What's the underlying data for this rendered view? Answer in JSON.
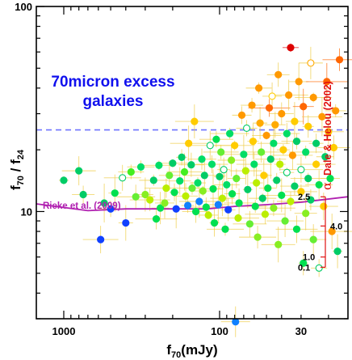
{
  "chart_data": {
    "type": "scatter",
    "x_axis": {
      "scale": "log",
      "reversed": true,
      "range": [
        1500,
        15
      ],
      "ticks": [
        {
          "value": 1000,
          "label": "1000"
        },
        {
          "value": 100,
          "label": "100"
        },
        {
          "value": 30,
          "label": "30"
        }
      ]
    },
    "y_axis": {
      "scale": "log",
      "range": [
        3,
        100
      ],
      "ticks": [
        {
          "value": 10,
          "label": "10"
        },
        {
          "value": 100,
          "label": "100"
        }
      ]
    },
    "threshold": {
      "y": 25,
      "color": "#6f74ff",
      "style": "dashed"
    },
    "rieke_curve": {
      "label": "Rieke et al. (2009)",
      "color": "#b020b0",
      "x": [
        1500,
        700,
        400,
        200,
        120,
        80,
        50,
        30,
        15
      ],
      "y": [
        10.9,
        10.1,
        10.3,
        10.3,
        10.3,
        10.6,
        10.8,
        11.1,
        11.8
      ]
    },
    "dale_helou": {
      "label_prefix": "α",
      "label_text": "Dale & Helou (2002)",
      "color": "#e01010",
      "alpha_marks": [
        {
          "label": "2.5",
          "y": 11.8
        },
        {
          "label": "4.0",
          "y": 8.5
        },
        {
          "label": "1.0",
          "y": 6.0
        },
        {
          "label": "0.1",
          "y": 5.35
        }
      ]
    },
    "points": [
      {
        "x": 1000,
        "y": 14.2,
        "c": "#00cc66",
        "f": true
      },
      {
        "x": 800,
        "y": 15.8,
        "c": "#00cc66",
        "f": true
      },
      {
        "x": 750,
        "y": 12.1,
        "c": "#00cc66",
        "f": true
      },
      {
        "x": 550,
        "y": 11.0,
        "c": "#00cc66",
        "f": true
      },
      {
        "x": 580,
        "y": 7.3,
        "c": "#1040ff",
        "f": true
      },
      {
        "x": 500,
        "y": 10.3,
        "c": "#1040ff",
        "f": true
      },
      {
        "x": 470,
        "y": 12.3,
        "c": "#00e050",
        "f": true
      },
      {
        "x": 420,
        "y": 14.6,
        "c": "#00cc66",
        "f": false
      },
      {
        "x": 370,
        "y": 15.6,
        "c": "#44ee22",
        "f": true
      },
      {
        "x": 400,
        "y": 8.8,
        "c": "#1040ff",
        "f": true
      },
      {
        "x": 345,
        "y": 11.8,
        "c": "#66ee33",
        "f": true
      },
      {
        "x": 320,
        "y": 16.5,
        "c": "#00dd66",
        "f": true
      },
      {
        "x": 300,
        "y": 12.1,
        "c": "#88ee22",
        "f": true
      },
      {
        "x": 280,
        "y": 11.4,
        "c": "#bbee00",
        "f": true
      },
      {
        "x": 265,
        "y": 14.2,
        "c": "#00cc66",
        "f": true
      },
      {
        "x": 240,
        "y": 10.4,
        "c": "#00e050",
        "f": true
      },
      {
        "x": 255,
        "y": 9.2,
        "c": "#00e050",
        "f": true
      },
      {
        "x": 245,
        "y": 16.8,
        "c": "#00dd66",
        "f": true
      },
      {
        "x": 225,
        "y": 11.0,
        "c": "#88ee22",
        "f": true
      },
      {
        "x": 220,
        "y": 13.0,
        "c": "#bbee00",
        "f": true
      },
      {
        "x": 200,
        "y": 17.2,
        "c": "#00cc66",
        "f": true
      },
      {
        "x": 210,
        "y": 15.0,
        "c": "#66ee33",
        "f": true
      },
      {
        "x": 195,
        "y": 12.4,
        "c": "#00e050",
        "f": true
      },
      {
        "x": 190,
        "y": 10.3,
        "c": "#1040ff",
        "f": true
      },
      {
        "x": 180,
        "y": 14.1,
        "c": "#00dd66",
        "f": true
      },
      {
        "x": 175,
        "y": 18.4,
        "c": "#00cc66",
        "f": true
      },
      {
        "x": 168,
        "y": 15.6,
        "c": "#44ee22",
        "f": true
      },
      {
        "x": 165,
        "y": 11.9,
        "c": "#bbee00",
        "f": true
      },
      {
        "x": 160,
        "y": 10.7,
        "c": "#1080ff",
        "f": true
      },
      {
        "x": 158,
        "y": 21.5,
        "c": "#ffcc00",
        "f": true
      },
      {
        "x": 152,
        "y": 16.9,
        "c": "#00cc66",
        "f": true
      },
      {
        "x": 150,
        "y": 13.0,
        "c": "#66ee33",
        "f": true
      },
      {
        "x": 145,
        "y": 27.5,
        "c": "#ffcc00",
        "f": true
      },
      {
        "x": 142,
        "y": 10.0,
        "c": "#00e050",
        "f": true
      },
      {
        "x": 138,
        "y": 13.8,
        "c": "#00dd66",
        "f": true
      },
      {
        "x": 135,
        "y": 11.2,
        "c": "#1080ff",
        "f": true
      },
      {
        "x": 130,
        "y": 18.0,
        "c": "#00dd66",
        "f": true
      },
      {
        "x": 128,
        "y": 12.6,
        "c": "#88ee22",
        "f": true
      },
      {
        "x": 125,
        "y": 15.0,
        "c": "#00cc66",
        "f": true
      },
      {
        "x": 122,
        "y": 10.5,
        "c": "#00e050",
        "f": true
      },
      {
        "x": 118,
        "y": 9.6,
        "c": "#bbee00",
        "f": true
      },
      {
        "x": 115,
        "y": 21.0,
        "c": "#00cc66",
        "f": false
      },
      {
        "x": 112,
        "y": 17.0,
        "c": "#00dd66",
        "f": true
      },
      {
        "x": 110,
        "y": 12.9,
        "c": "#00e050",
        "f": true
      },
      {
        "x": 108,
        "y": 8.8,
        "c": "#00e050",
        "f": true
      },
      {
        "x": 105,
        "y": 22.5,
        "c": "#00e050",
        "f": true
      },
      {
        "x": 102,
        "y": 10.8,
        "c": "#1080ff",
        "f": true
      },
      {
        "x": 100,
        "y": 14.8,
        "c": "#00cc66",
        "f": true
      },
      {
        "x": 98,
        "y": 19.5,
        "c": "#66ee33",
        "f": true
      },
      {
        "x": 96,
        "y": 11.6,
        "c": "#bbee00",
        "f": true
      },
      {
        "x": 94,
        "y": 16.0,
        "c": "#00cc66",
        "f": false
      },
      {
        "x": 92,
        "y": 8.2,
        "c": "#00e050",
        "f": true
      },
      {
        "x": 90,
        "y": 13.5,
        "c": "#00dd66",
        "f": true
      },
      {
        "x": 88,
        "y": 10.2,
        "c": "#1040ff",
        "f": true
      },
      {
        "x": 86,
        "y": 24.0,
        "c": "#00dd66",
        "f": true
      },
      {
        "x": 84,
        "y": 17.8,
        "c": "#88ee22",
        "f": true
      },
      {
        "x": 83,
        "y": 12.2,
        "c": "#00e050",
        "f": true
      },
      {
        "x": 80,
        "y": 21.0,
        "c": "#ffcc00",
        "f": true
      },
      {
        "x": 79,
        "y": 2.9,
        "c": "#1080ff",
        "f": true
      },
      {
        "x": 78,
        "y": 14.5,
        "c": "#66ee33",
        "f": true
      },
      {
        "x": 76,
        "y": 9.3,
        "c": "#bbee00",
        "f": true
      },
      {
        "x": 75,
        "y": 11.0,
        "c": "#00e050",
        "f": true
      },
      {
        "x": 72,
        "y": 29.5,
        "c": "#ff9900",
        "f": true
      },
      {
        "x": 70,
        "y": 19.0,
        "c": "#00dd66",
        "f": true
      },
      {
        "x": 68,
        "y": 15.8,
        "c": "#bbee00",
        "f": true
      },
      {
        "x": 67,
        "y": 25.5,
        "c": "#00cc66",
        "f": false
      },
      {
        "x": 66,
        "y": 12.8,
        "c": "#00cc66",
        "f": true
      },
      {
        "x": 64,
        "y": 8.7,
        "c": "#66ee33",
        "f": true
      },
      {
        "x": 62,
        "y": 33.0,
        "c": "#ff9900",
        "f": true
      },
      {
        "x": 61,
        "y": 22.0,
        "c": "#ffcc00",
        "f": true
      },
      {
        "x": 60,
        "y": 17.0,
        "c": "#00dd66",
        "f": true
      },
      {
        "x": 59,
        "y": 10.6,
        "c": "#00e050",
        "f": true
      },
      {
        "x": 58,
        "y": 13.8,
        "c": "#bbee00",
        "f": true
      },
      {
        "x": 57,
        "y": 7.5,
        "c": "#88ee22",
        "f": true
      },
      {
        "x": 56,
        "y": 40.0,
        "c": "#ff9900",
        "f": true
      },
      {
        "x": 55,
        "y": 27.0,
        "c": "#ffaa00",
        "f": true
      },
      {
        "x": 54,
        "y": 19.5,
        "c": "#66ee33",
        "f": true
      },
      {
        "x": 53,
        "y": 11.6,
        "c": "#00cc66",
        "f": true
      },
      {
        "x": 52,
        "y": 15.0,
        "c": "#ffcc00",
        "f": true
      },
      {
        "x": 51,
        "y": 9.7,
        "c": "#bbee00",
        "f": true
      },
      {
        "x": 50,
        "y": 23.5,
        "c": "#ff9900",
        "f": true
      },
      {
        "x": 49,
        "y": 13.0,
        "c": "#00e050",
        "f": true
      },
      {
        "x": 48,
        "y": 32.0,
        "c": "#ff6600",
        "f": true
      },
      {
        "x": 47,
        "y": 18.0,
        "c": "#00cc66",
        "f": true
      },
      {
        "x": 46,
        "y": 36.5,
        "c": "#ffcc00",
        "f": false
      },
      {
        "x": 45,
        "y": 10.4,
        "c": "#88ee22",
        "f": true
      },
      {
        "x": 45,
        "y": 21.5,
        "c": "#00dd66",
        "f": true
      },
      {
        "x": 44,
        "y": 26.5,
        "c": "#ffaa00",
        "f": true
      },
      {
        "x": 43,
        "y": 14.2,
        "c": "#00cc66",
        "f": true
      },
      {
        "x": 42,
        "y": 6.9,
        "c": "#88ee22",
        "f": true
      },
      {
        "x": 42,
        "y": 46.5,
        "c": "#ff9900",
        "f": true
      },
      {
        "x": 41,
        "y": 17.0,
        "c": "#bbee00",
        "f": true
      },
      {
        "x": 40,
        "y": 12.0,
        "c": "#00e050",
        "f": true
      },
      {
        "x": 40,
        "y": 30.0,
        "c": "#ff9900",
        "f": true
      },
      {
        "x": 39,
        "y": 20.0,
        "c": "#ffcc00",
        "f": true
      },
      {
        "x": 38,
        "y": 9.0,
        "c": "#66ee33",
        "f": true
      },
      {
        "x": 37,
        "y": 24.0,
        "c": "#00dd66",
        "f": true
      },
      {
        "x": 37,
        "y": 15.5,
        "c": "#00cc66",
        "f": false
      },
      {
        "x": 36,
        "y": 37.0,
        "c": "#ff9900",
        "f": true
      },
      {
        "x": 35,
        "y": 11.2,
        "c": "#bbee00",
        "f": true
      },
      {
        "x": 35,
        "y": 63.0,
        "c": "#dd0000",
        "f": true
      },
      {
        "x": 34,
        "y": 18.8,
        "c": "#ff9900",
        "f": true
      },
      {
        "x": 33,
        "y": 13.3,
        "c": "#00cc66",
        "f": true
      },
      {
        "x": 33,
        "y": 27.5,
        "c": "#ffcc00",
        "f": true
      },
      {
        "x": 32,
        "y": 8.2,
        "c": "#00e050",
        "f": true
      },
      {
        "x": 32,
        "y": 22.0,
        "c": "#00cc66",
        "f": true
      },
      {
        "x": 31,
        "y": 43.0,
        "c": "#ff9900",
        "f": true
      },
      {
        "x": 30,
        "y": 16.0,
        "c": "#00cc66",
        "f": false
      },
      {
        "x": 30,
        "y": 12.5,
        "c": "#ffcc00",
        "f": true
      },
      {
        "x": 29,
        "y": 32.5,
        "c": "#ff6600",
        "f": true
      },
      {
        "x": 29,
        "y": 5.6,
        "c": "#00e050",
        "f": true
      },
      {
        "x": 28,
        "y": 19.5,
        "c": "#00dd66",
        "f": true
      },
      {
        "x": 28,
        "y": 9.8,
        "c": "#88ee22",
        "f": true
      },
      {
        "x": 27,
        "y": 26.0,
        "c": "#ffcc00",
        "f": true
      },
      {
        "x": 27,
        "y": 14.5,
        "c": "#00cc66",
        "f": true
      },
      {
        "x": 26,
        "y": 53.0,
        "c": "#ffaa00",
        "f": false
      },
      {
        "x": 26,
        "y": 11.4,
        "c": "#00cc66",
        "f": true
      },
      {
        "x": 25,
        "y": 36.0,
        "c": "#ff9900",
        "f": true
      },
      {
        "x": 25,
        "y": 7.3,
        "c": "#66ee33",
        "f": true
      },
      {
        "x": 24,
        "y": 21.5,
        "c": "#00cc66",
        "f": true
      },
      {
        "x": 24,
        "y": 17.0,
        "c": "#ffcc00",
        "f": true
      },
      {
        "x": 23,
        "y": 13.5,
        "c": "#00e050",
        "f": true
      },
      {
        "x": 23,
        "y": 5.3,
        "c": "#00cc66",
        "f": false
      },
      {
        "x": 22,
        "y": 29.0,
        "c": "#ff9900",
        "f": true
      },
      {
        "x": 21.5,
        "y": 10.6,
        "c": "#ffcc00",
        "f": true
      },
      {
        "x": 21,
        "y": 18.5,
        "c": "#00cc66",
        "f": true
      },
      {
        "x": 20.5,
        "y": 43.0,
        "c": "#ff6600",
        "f": true
      },
      {
        "x": 20,
        "y": 24.5,
        "c": "#ffcc00",
        "f": true
      },
      {
        "x": 19.5,
        "y": 14.5,
        "c": "#00e050",
        "f": true
      },
      {
        "x": 19,
        "y": 8.0,
        "c": "#ff9900",
        "f": true
      },
      {
        "x": 18.5,
        "y": 20.5,
        "c": "#ffcc00",
        "f": true
      },
      {
        "x": 18,
        "y": 31.0,
        "c": "#ff9900",
        "f": true
      },
      {
        "x": 17.5,
        "y": 6.4,
        "c": "#00cc66",
        "f": true
      },
      {
        "x": 17,
        "y": 55.0,
        "c": "#ff6600",
        "f": true
      }
    ]
  },
  "text": {
    "title_line1": "70micron excess",
    "title_line2": "galaxies",
    "ylabel_main": "f",
    "ylabel_sub1": "70",
    "ylabel_sep": " / f",
    "ylabel_sub2": "24",
    "xlabel_main": "f",
    "xlabel_sub": "70",
    "xlabel_rest": "(mJy)"
  },
  "colors": {
    "title": "#1010ee",
    "rieke": "#b020b0",
    "dale": "#e01010",
    "threshold": "#6f74ff",
    "errorbar": "#eecc44"
  }
}
